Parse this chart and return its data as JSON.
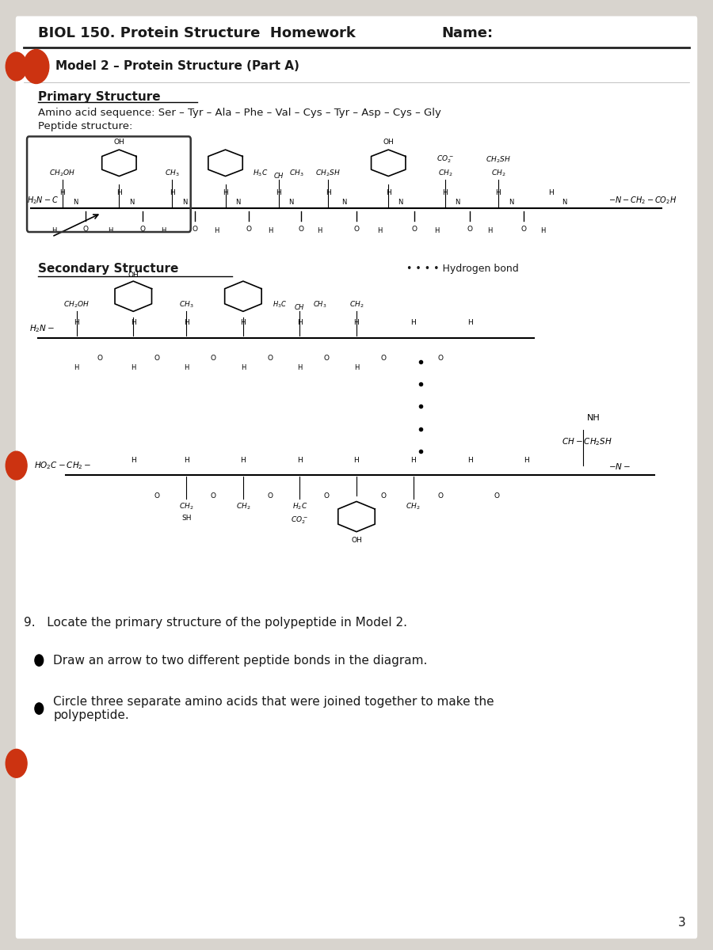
{
  "title": "BIOL 150. Protein Structure  Homework",
  "name_label": "Name:",
  "model_header": "Model 2 – Protein Structure (Part A)",
  "primary_structure_header": "Primary Structure",
  "amino_acid_sequence_label": "Amino acid sequence: Ser – Tyr – Ala – Phe – Val – Cys – Tyr – Asp – Cys – Gly",
  "peptide_structure_label": "Peptide structure:",
  "secondary_structure_header": "Secondary Structure",
  "hydrogen_bond_label": "• • • • Hydrogen bond",
  "question_9": "9.   Locate the primary structure of the polypeptide in Model 2.",
  "bullet1": "Draw an arrow to two different peptide bonds in the diagram.",
  "bullet2": "Circle three separate amino acids that were joined together to make the\npolypeptide.",
  "page_number": "3",
  "bg_color": "#d8d4ce",
  "paper_color": "#ffffff",
  "text_color": "#1a1a1a",
  "red_accent": "#cc2200"
}
